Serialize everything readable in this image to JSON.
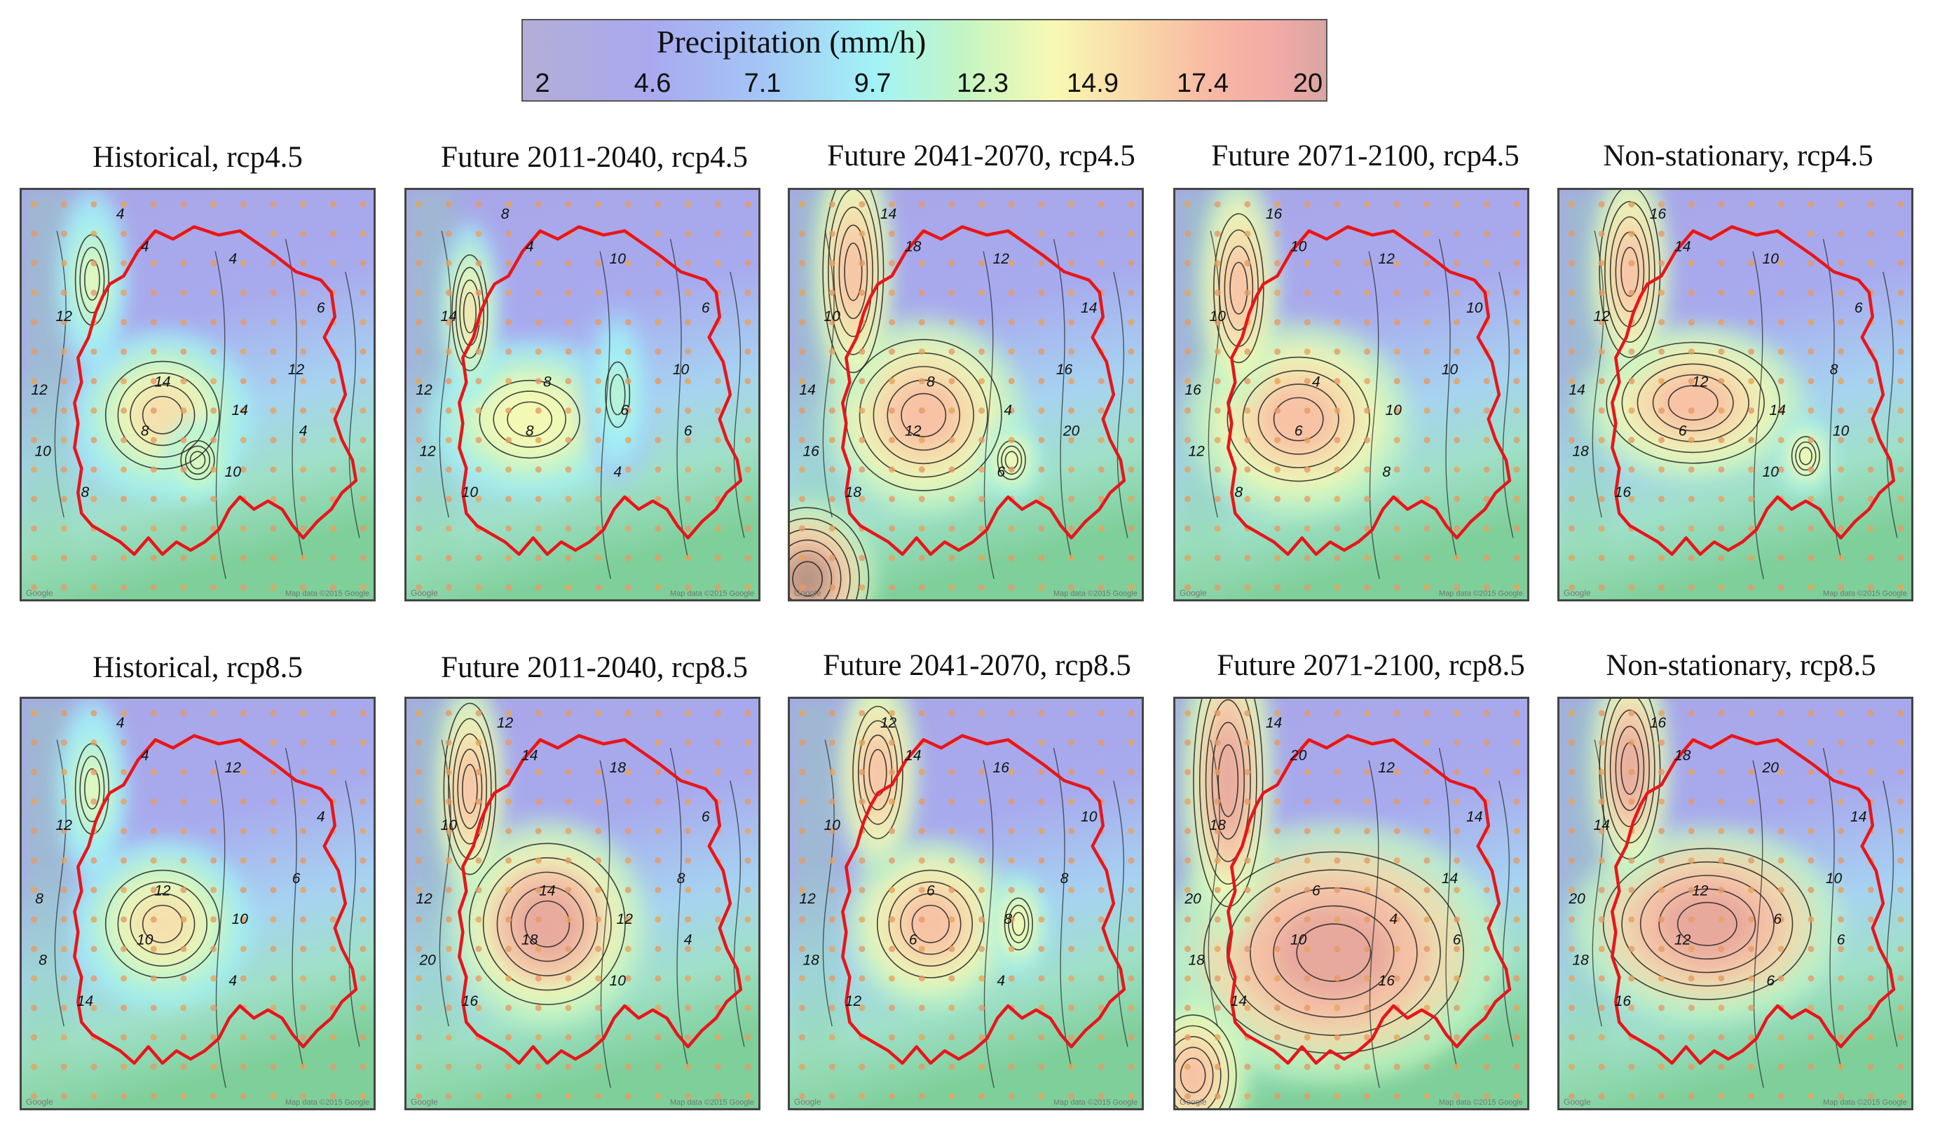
{
  "colorbar": {
    "title": "Precipitation (mm/h)",
    "ticks": [
      "2",
      "4.6",
      "7.1",
      "9.7",
      "12.3",
      "14.9",
      "17.4",
      "20"
    ],
    "colors": [
      "#b3aed6",
      "#a9a9ef",
      "#a4c6f6",
      "#a3f3f6",
      "#c4f5c2",
      "#f8f9b3",
      "#f9d9a9",
      "#f8b8a3",
      "#f2aaa6",
      "#d9a5a1"
    ]
  },
  "panels": [
    {
      "title": "Historical, rcp4.5",
      "contour_labels": [
        "4",
        "4",
        "4",
        "12",
        "12",
        "10",
        "8",
        "8",
        "14",
        "14",
        "10",
        "12",
        "6",
        "4"
      ]
    },
    {
      "title": "Future 2011-2040, rcp4.5",
      "contour_labels": [
        "8",
        "4",
        "10",
        "14",
        "12",
        "12",
        "10",
        "8",
        "8",
        "6",
        "4",
        "10",
        "6",
        "6"
      ]
    },
    {
      "title": "Future 2041-2070, rcp4.5",
      "contour_labels": [
        "14",
        "18",
        "12",
        "10",
        "14",
        "16",
        "18",
        "12",
        "8",
        "4",
        "6",
        "16",
        "14",
        "20"
      ]
    },
    {
      "title": "Future 2071-2100, rcp4.5",
      "contour_labels": [
        "16",
        "10",
        "12",
        "10",
        "16",
        "12",
        "8",
        "6",
        "4",
        "10",
        "8",
        "10",
        "10"
      ]
    },
    {
      "title": "Non-stationary, rcp4.5",
      "contour_labels": [
        "16",
        "14",
        "10",
        "12",
        "14",
        "18",
        "16",
        "6",
        "12",
        "14",
        "10",
        "8",
        "6",
        "10"
      ]
    },
    {
      "title": "Historical, rcp8.5",
      "contour_labels": [
        "4",
        "4",
        "12",
        "12",
        "8",
        "8",
        "14",
        "10",
        "12",
        "10",
        "4",
        "6",
        "4"
      ]
    },
    {
      "title": "Future 2011-2040, rcp8.5",
      "contour_labels": [
        "12",
        "14",
        "18",
        "10",
        "12",
        "20",
        "16",
        "18",
        "14",
        "12",
        "10",
        "8",
        "6",
        "4"
      ]
    },
    {
      "title": "Future 2041-2070, rcp8.5",
      "contour_labels": [
        "12",
        "14",
        "16",
        "10",
        "12",
        "18",
        "12",
        "6",
        "6",
        "8",
        "4",
        "8",
        "10"
      ]
    },
    {
      "title": "Future 2071-2100, rcp8.5",
      "contour_labels": [
        "14",
        "20",
        "12",
        "18",
        "20",
        "18",
        "14",
        "10",
        "6",
        "4",
        "16",
        "14",
        "14",
        "6"
      ]
    },
    {
      "title": "Non-stationary, rcp8.5",
      "contour_labels": [
        "16",
        "18",
        "20",
        "14",
        "20",
        "18",
        "16",
        "12",
        "12",
        "6",
        "6",
        "10",
        "14",
        "6"
      ]
    }
  ],
  "map_attribution": "Map data ©2015 Google",
  "map_logo": "Google"
}
